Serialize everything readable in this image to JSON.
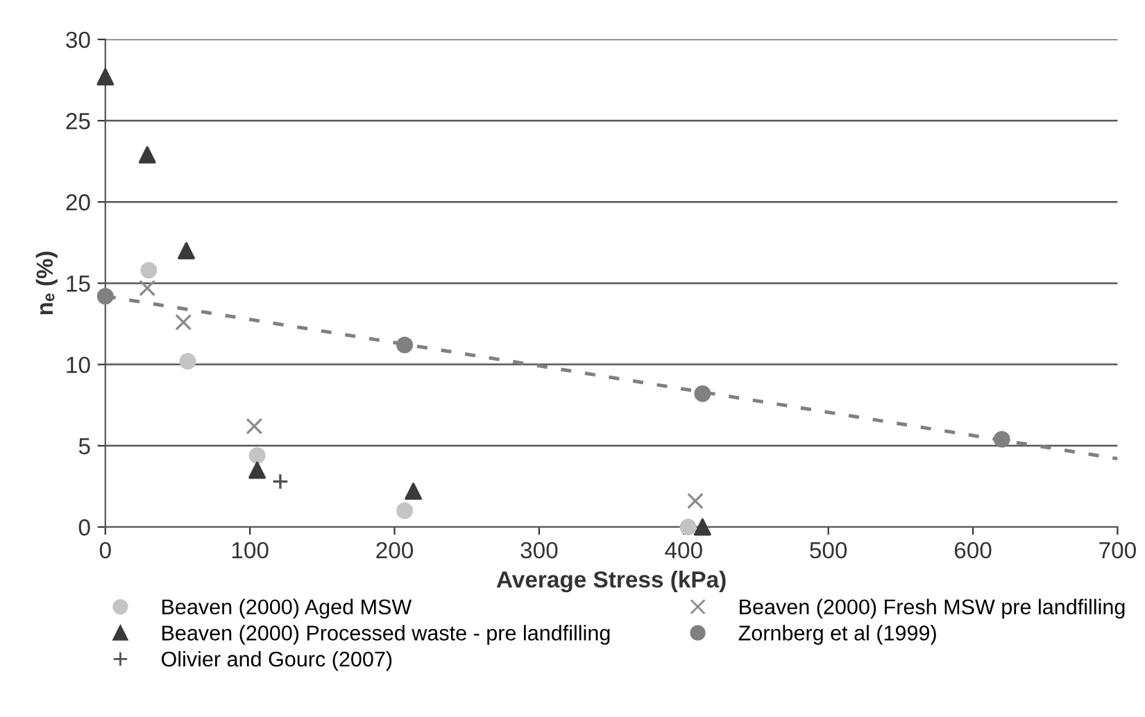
{
  "chart_data": {
    "type": "scatter",
    "xlabel": "Average Stress (kPa)",
    "ylabel": "nₑ (%)",
    "xlim": [
      0,
      700
    ],
    "xticks": [
      0,
      100,
      200,
      300,
      400,
      500,
      600,
      700
    ],
    "ylim": [
      0,
      30
    ],
    "yticks": [
      0,
      5,
      10,
      15,
      20,
      25,
      30
    ],
    "grid": "y",
    "legend": "bottom",
    "series": [
      {
        "name": "Beaven (2000) Aged MSW",
        "color": "#c4c4c4",
        "marker": "circle",
        "x": [
          30,
          57,
          105,
          207,
          403
        ],
        "values": [
          15.8,
          10.2,
          4.4,
          1.0,
          0
        ]
      },
      {
        "name": "Beaven (2000) Fresh MSW pre landfilling",
        "color": "#8c8c8c",
        "marker": "cross",
        "x": [
          29,
          54,
          103,
          210,
          408
        ],
        "values": [
          14.7,
          12.6,
          6.2,
          null,
          1.6
        ]
      },
      {
        "name": "Beaven (2000) Processed waste - pre landfilling",
        "color": "#3a3a3a",
        "marker": "triangle",
        "x": [
          0,
          29,
          56,
          105,
          213,
          413
        ],
        "values": [
          27.7,
          22.9,
          17.0,
          3.5,
          2.2,
          0
        ]
      },
      {
        "name": "Zornberg et al (1999)",
        "color": "#808080",
        "marker": "circle",
        "x": [
          0,
          207,
          413,
          620
        ],
        "values": [
          14.2,
          11.2,
          8.2,
          5.4
        ]
      },
      {
        "name": "Olivier and Gourc (2007)",
        "color": "#505050",
        "marker": "plus",
        "x": [
          121
        ],
        "values": [
          2.8
        ]
      },
      {
        "type": "line",
        "color": "#808080",
        "line_style": "dashed",
        "marker": "none",
        "x": [
          0,
          700
        ],
        "values": [
          14.2,
          4.2
        ]
      }
    ]
  }
}
